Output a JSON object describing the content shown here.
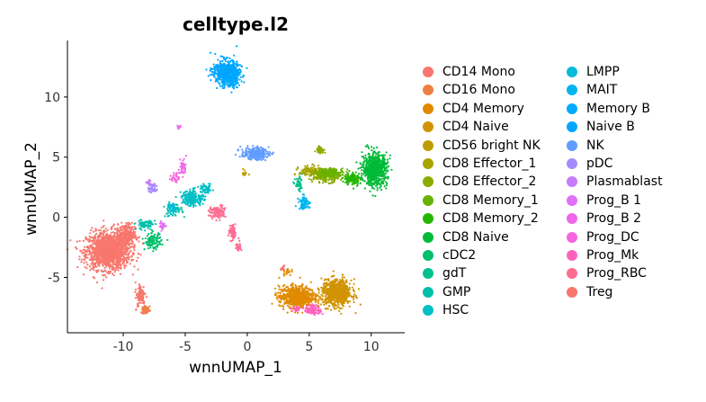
{
  "chart_data": {
    "type": "scatter",
    "title": "celltype.l2",
    "xlabel": "wnnUMAP_1",
    "ylabel": "wnnUMAP_2",
    "xlim": [
      -14.5,
      12.7
    ],
    "ylim": [
      -9.6,
      14.7
    ],
    "x_ticks": [
      -10,
      -5,
      0,
      5,
      10
    ],
    "x_tick_labels": [
      "-10",
      "-5",
      "0",
      "5",
      "10"
    ],
    "y_ticks": [
      -5,
      0,
      5,
      10
    ],
    "y_tick_labels": [
      "-5",
      "0",
      "5",
      "10"
    ],
    "grid": false,
    "legend_position": "right",
    "legend_columns": 2,
    "series": [
      {
        "name": "CD14 Mono",
        "color": "#F8766D",
        "clusters": [
          [
            -11.2,
            -2.8,
            1.6,
            1.4,
            1400
          ],
          [
            -9.8,
            -1.5,
            0.7,
            0.9,
            300
          ],
          [
            -8.6,
            -6.5,
            0.4,
            1.0,
            90
          ],
          [
            -8.2,
            -7.7,
            0.3,
            0.3,
            40
          ]
        ]
      },
      {
        "name": "CD16 Mono",
        "color": "#EE8043",
        "clusters": [
          [
            -8.2,
            -7.6,
            0.25,
            0.35,
            35
          ]
        ]
      },
      {
        "name": "CD4 Memory",
        "color": "#E18A00",
        "clusters": [
          [
            4.0,
            -6.6,
            1.3,
            0.8,
            700
          ],
          [
            3.2,
            -4.5,
            0.3,
            0.3,
            20
          ]
        ]
      },
      {
        "name": "CD4 Naive",
        "color": "#D19300",
        "clusters": [
          [
            7.2,
            -6.3,
            1.1,
            1.0,
            700
          ]
        ]
      },
      {
        "name": "CD56 bright NK",
        "color": "#BE9C00",
        "clusters": [
          [
            -0.2,
            3.7,
            0.15,
            0.3,
            15
          ]
        ]
      },
      {
        "name": "CD8 Effector_1",
        "color": "#A7A400",
        "clusters": [
          [
            5.2,
            3.8,
            0.9,
            0.4,
            150
          ]
        ]
      },
      {
        "name": "CD8 Effector_2",
        "color": "#8CAB00",
        "clusters": [
          [
            6.3,
            3.4,
            1.0,
            0.45,
            200
          ],
          [
            5.9,
            5.6,
            0.3,
            0.3,
            40
          ]
        ]
      },
      {
        "name": "CD8 Memory_1",
        "color": "#69B100",
        "clusters": [
          [
            6.7,
            3.7,
            1.0,
            0.35,
            150
          ]
        ]
      },
      {
        "name": "CD8 Memory_2",
        "color": "#24B700",
        "clusters": [
          [
            8.5,
            3.2,
            0.6,
            0.5,
            120
          ]
        ]
      },
      {
        "name": "CD8 Naive",
        "color": "#00BA38",
        "clusters": [
          [
            10.3,
            4.0,
            0.9,
            1.2,
            700
          ]
        ]
      },
      {
        "name": "cDC2",
        "color": "#00BE6C",
        "clusters": [
          [
            -7.6,
            -2.0,
            0.6,
            0.6,
            120
          ]
        ]
      },
      {
        "name": "gdT",
        "color": "#00C08E",
        "clusters": [
          [
            4.2,
            2.7,
            0.3,
            0.5,
            40
          ]
        ]
      },
      {
        "name": "GMP",
        "color": "#00C0AA",
        "clusters": [
          [
            -8.2,
            -0.6,
            0.7,
            0.4,
            80
          ],
          [
            -6.0,
            0.6,
            0.7,
            0.5,
            60
          ]
        ]
      },
      {
        "name": "HSC",
        "color": "#00BFC4",
        "clusters": [
          [
            -4.4,
            1.6,
            0.8,
            0.6,
            200
          ],
          [
            -3.3,
            2.3,
            0.4,
            0.35,
            60
          ]
        ]
      },
      {
        "name": "LMPP",
        "color": "#00BBDA",
        "clusters": [
          [
            -6.0,
            0.8,
            0.4,
            0.4,
            30
          ]
        ]
      },
      {
        "name": "MAIT",
        "color": "#00B4EF",
        "clusters": [
          [
            4.6,
            1.2,
            0.4,
            0.5,
            70
          ]
        ]
      },
      {
        "name": "Memory B",
        "color": "#00ABFD",
        "clusters": [
          [
            -1.3,
            11.8,
            0.7,
            0.9,
            250
          ]
        ]
      },
      {
        "name": "Naive B",
        "color": "#00A5FF",
        "clusters": [
          [
            -1.8,
            12.1,
            0.9,
            0.9,
            400
          ]
        ]
      },
      {
        "name": "NK",
        "color": "#619CFF",
        "clusters": [
          [
            0.6,
            5.3,
            1.0,
            0.45,
            250
          ]
        ]
      },
      {
        "name": "pDC",
        "color": "#A58AFF",
        "clusters": [
          [
            -7.6,
            2.4,
            0.3,
            0.4,
            40
          ]
        ]
      },
      {
        "name": "Plasmablast",
        "color": "#C77CFF",
        "clusters": [
          [
            -7.9,
            2.9,
            0.2,
            0.2,
            15
          ]
        ]
      },
      {
        "name": "Prog_B 1",
        "color": "#DF70F8",
        "clusters": [
          [
            -6.8,
            -0.7,
            0.25,
            0.3,
            25
          ]
        ]
      },
      {
        "name": "Prog_B 2",
        "color": "#EF67EB",
        "clusters": [
          [
            -5.2,
            4.2,
            0.25,
            0.7,
            40
          ],
          [
            -5.5,
            7.5,
            0.15,
            0.15,
            15
          ]
        ]
      },
      {
        "name": "Prog_DC",
        "color": "#F863DF",
        "clusters": [
          [
            -5.8,
            3.3,
            0.3,
            0.4,
            25
          ]
        ]
      },
      {
        "name": "Prog_Mk",
        "color": "#FF62BC",
        "clusters": [
          [
            5.3,
            -7.7,
            0.6,
            0.35,
            100
          ],
          [
            4.0,
            -7.6,
            0.3,
            0.2,
            30
          ]
        ]
      },
      {
        "name": "Prog_RBC",
        "color": "#FF6C91",
        "clusters": [
          [
            -2.4,
            0.4,
            0.6,
            0.5,
            100
          ],
          [
            -1.2,
            -1.3,
            0.3,
            0.6,
            60
          ],
          [
            -0.7,
            -2.5,
            0.2,
            0.4,
            30
          ]
        ]
      },
      {
        "name": "Treg",
        "color": "#F8766D",
        "clusters": [
          [
            2.9,
            -4.2,
            0.2,
            0.25,
            10
          ]
        ]
      }
    ]
  }
}
